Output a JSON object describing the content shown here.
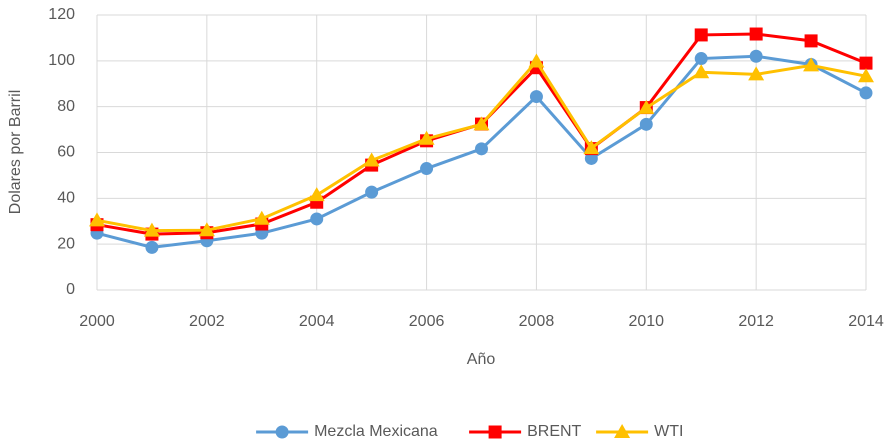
{
  "chart_data": {
    "type": "line",
    "x": [
      2000,
      2001,
      2002,
      2003,
      2004,
      2005,
      2006,
      2007,
      2008,
      2009,
      2010,
      2011,
      2012,
      2013,
      2014
    ],
    "series": [
      {
        "name": "Mezcla Mexicana",
        "color": "#5b9bd5",
        "marker": "circle",
        "values": [
          24.8,
          18.6,
          21.5,
          24.8,
          31,
          42.7,
          53,
          61.6,
          84.4,
          57.4,
          72.3,
          101,
          102,
          98.4,
          86
        ]
      },
      {
        "name": "BRENT",
        "color": "#ff0000",
        "marker": "square",
        "values": [
          28.5,
          24.4,
          25,
          28.8,
          38.3,
          54.5,
          65.1,
          72.4,
          97,
          61.7,
          79.6,
          111.3,
          111.7,
          108.7,
          99
        ]
      },
      {
        "name": "WTI",
        "color": "#ffc000",
        "marker": "triangle",
        "values": [
          30.4,
          25.9,
          26.1,
          31.1,
          41.4,
          56.5,
          66,
          72.3,
          99.7,
          61.9,
          79.5,
          95,
          94.1,
          98,
          93.3
        ]
      }
    ],
    "xlabel": "Año",
    "ylabel": "Dolares por Barril",
    "xlim": [
      2000,
      2014
    ],
    "xticks": [
      2000,
      2002,
      2004,
      2006,
      2008,
      2010,
      2012,
      2014
    ],
    "ylim": [
      0,
      120
    ],
    "yticks": [
      0,
      20,
      40,
      60,
      80,
      100,
      120
    ],
    "grid": true,
    "legend": "bottom"
  }
}
